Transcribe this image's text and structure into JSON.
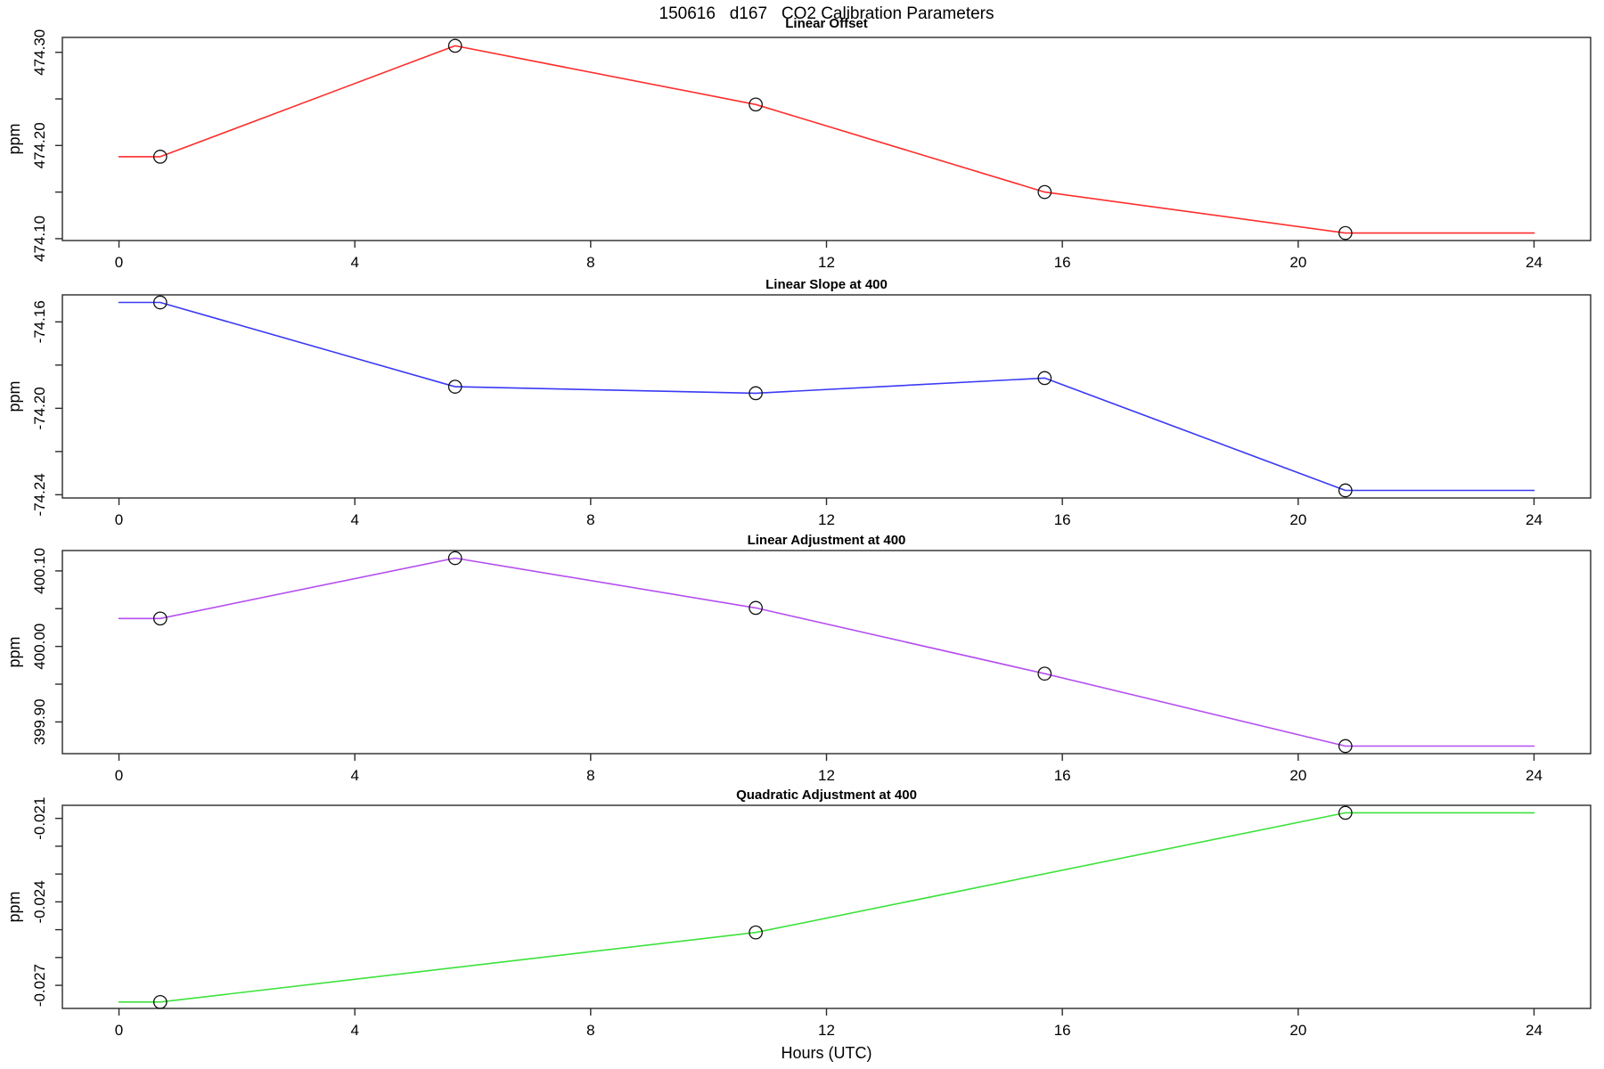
{
  "chart_data": {
    "type": "line",
    "title": "150616   d167   CO2 Calibration Parameters",
    "xlabel": "Hours (UTC)",
    "x_ticks": [
      0,
      4,
      8,
      12,
      16,
      20,
      24
    ],
    "xlim": [
      -0.96,
      24.96
    ],
    "x_range_hours": [
      0,
      24
    ],
    "point_marker": "open-circle",
    "panels": [
      {
        "name": "linear-offset",
        "title": "Linear Offset",
        "ylabel": "ppm",
        "color": "#ff2d2d",
        "x": [
          0.7,
          5.7,
          10.8,
          15.7,
          20.8
        ],
        "y": [
          474.188,
          474.307,
          474.244,
          474.15,
          474.106
        ],
        "ylim": [
          474.098,
          474.316
        ],
        "yticks": [
          {
            "v": 474.1,
            "label": "474.10"
          },
          {
            "v": 474.15,
            "label": ""
          },
          {
            "v": 474.2,
            "label": "474.20"
          },
          {
            "v": 474.25,
            "label": ""
          },
          {
            "v": 474.3,
            "label": "474.30"
          }
        ]
      },
      {
        "name": "linear-slope-at-400",
        "title": "Linear Slope at 400",
        "ylabel": "ppm",
        "color": "#3a3af5",
        "x": [
          0.7,
          5.7,
          10.8,
          15.7,
          20.8
        ],
        "y": [
          -74.151,
          -74.19,
          -74.193,
          -74.186,
          -74.238
        ],
        "ylim": [
          -74.2415,
          -74.1475
        ],
        "yticks": [
          {
            "v": -74.24,
            "label": "-74.24"
          },
          {
            "v": -74.22,
            "label": ""
          },
          {
            "v": -74.2,
            "label": "-74.20"
          },
          {
            "v": -74.18,
            "label": ""
          },
          {
            "v": -74.16,
            "label": "-74.16"
          }
        ]
      },
      {
        "name": "linear-adjustment-at-400",
        "title": "Linear Adjustment at 400",
        "ylabel": "ppm",
        "color": "#b44ff0",
        "x": [
          0.7,
          5.7,
          10.8,
          15.7,
          20.8
        ],
        "y": [
          400.037,
          400.117,
          400.051,
          399.964,
          399.868
        ],
        "ylim": [
          399.858,
          400.127
        ],
        "yticks": [
          {
            "v": 399.9,
            "label": "399.90"
          },
          {
            "v": 399.95,
            "label": ""
          },
          {
            "v": 400.0,
            "label": "400.00"
          },
          {
            "v": 400.05,
            "label": ""
          },
          {
            "v": 400.1,
            "label": "400.10"
          }
        ]
      },
      {
        "name": "quadratic-adjustment-at-400",
        "title": "Quadratic Adjustment at 400",
        "ylabel": "ppm",
        "color": "#3ce23c",
        "x": [
          0.7,
          10.8,
          20.8
        ],
        "y": [
          -0.0276,
          -0.0251,
          -0.0208
        ],
        "ylim": [
          -0.02783,
          -0.02053
        ],
        "yticks": [
          {
            "v": -0.027,
            "label": "-0.027"
          },
          {
            "v": -0.026,
            "label": ""
          },
          {
            "v": -0.025,
            "label": ""
          },
          {
            "v": -0.024,
            "label": "-0.024"
          },
          {
            "v": -0.023,
            "label": ""
          },
          {
            "v": -0.022,
            "label": ""
          },
          {
            "v": -0.021,
            "label": "-0.021"
          }
        ]
      }
    ]
  }
}
